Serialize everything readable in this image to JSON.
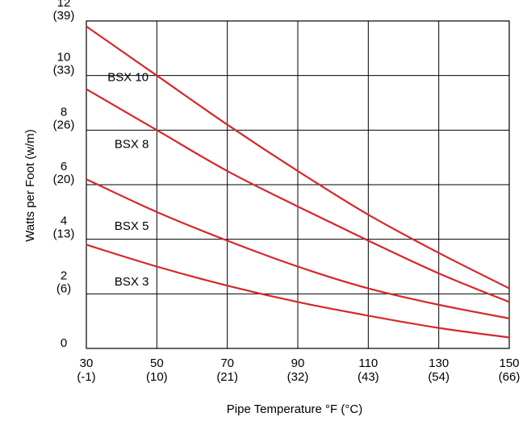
{
  "chart_data": {
    "type": "line",
    "title": "",
    "xlabel": "Pipe Temperature °F (°C)",
    "ylabel": "Watts per Foot (w/m)",
    "xlim": [
      30,
      150
    ],
    "ylim": [
      0,
      12
    ],
    "grid": true,
    "x_ticks": [
      {
        "value": 30,
        "label": "30",
        "sublabel": "(-1)"
      },
      {
        "value": 50,
        "label": "50",
        "sublabel": "(10)"
      },
      {
        "value": 70,
        "label": "70",
        "sublabel": "(21)"
      },
      {
        "value": 90,
        "label": "90",
        "sublabel": "(32)"
      },
      {
        "value": 110,
        "label": "110",
        "sublabel": "(43)"
      },
      {
        "value": 130,
        "label": "130",
        "sublabel": "(54)"
      },
      {
        "value": 150,
        "label": "150",
        "sublabel": "(66)"
      }
    ],
    "y_ticks": [
      {
        "value": 0,
        "label": "0",
        "sublabel": ""
      },
      {
        "value": 2,
        "label": "2",
        "sublabel": "(6)"
      },
      {
        "value": 4,
        "label": "4",
        "sublabel": "(13)"
      },
      {
        "value": 6,
        "label": "6",
        "sublabel": "(20)"
      },
      {
        "value": 8,
        "label": "8",
        "sublabel": "(26)"
      },
      {
        "value": 10,
        "label": "10",
        "sublabel": "(33)"
      },
      {
        "value": 12,
        "label": "12",
        "sublabel": "(39)"
      }
    ],
    "line_color": "#d7262b",
    "series": [
      {
        "name": "BSX 10",
        "x": [
          30,
          50,
          70,
          90,
          110,
          130,
          150
        ],
        "values": [
          11.8,
          10.0,
          8.2,
          6.5,
          4.9,
          3.5,
          2.2
        ]
      },
      {
        "name": "BSX 8",
        "x": [
          30,
          50,
          70,
          90,
          110,
          130,
          150
        ],
        "values": [
          9.5,
          8.0,
          6.5,
          5.2,
          3.95,
          2.75,
          1.7
        ]
      },
      {
        "name": "BSX 5",
        "x": [
          30,
          50,
          70,
          90,
          110,
          130,
          150
        ],
        "values": [
          6.2,
          5.0,
          3.95,
          3.0,
          2.2,
          1.6,
          1.1
        ]
      },
      {
        "name": "BSX 3",
        "x": [
          30,
          50,
          70,
          90,
          110,
          130,
          150
        ],
        "values": [
          3.8,
          3.0,
          2.3,
          1.7,
          1.2,
          0.75,
          0.4
        ]
      }
    ]
  }
}
